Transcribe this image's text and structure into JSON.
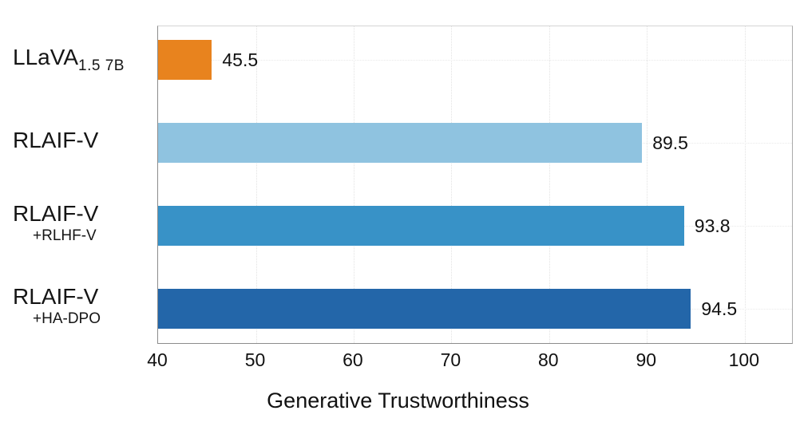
{
  "figure": {
    "background": "#ffffff",
    "text_color": "#111111"
  },
  "chart_data": {
    "type": "bar",
    "orientation": "horizontal",
    "title": "",
    "xlabel": "Generative Trustworthiness",
    "ylabel": "",
    "xlim": [
      40,
      105
    ],
    "xticks": [
      "40",
      "50",
      "60",
      "70",
      "80",
      "90",
      "100"
    ],
    "xtick_values": [
      40,
      50,
      60,
      70,
      80,
      90,
      100
    ],
    "grid": "faint dotted gridlines, vertical at each x tick and horizontal at each bar center",
    "legend": "none",
    "categories": [
      "LLaVA 1.5 7B",
      "RLAIF-V",
      "RLAIF-V +RLHF-V",
      "RLAIF-V +HA-DPO"
    ],
    "values": [
      45.5,
      89.5,
      93.8,
      94.5
    ],
    "value_labels": [
      "45.5",
      "89.5",
      "93.8",
      "94.5"
    ],
    "bar_colors": [
      "#E8831E",
      "#8FC3E0",
      "#3892C7",
      "#2366A9"
    ]
  },
  "rows": [
    {
      "label": "LLaVA",
      "subscript": "1.5 7B",
      "sublabel": "",
      "value_label": "45.5",
      "color": "#E8831E"
    },
    {
      "label": "RLAIF-V",
      "subscript": "",
      "sublabel": "",
      "value_label": "89.5",
      "color": "#8FC3E0"
    },
    {
      "label": "RLAIF-V",
      "subscript": "",
      "sublabel": "+RLHF-V",
      "value_label": "93.8",
      "color": "#3892C7"
    },
    {
      "label": "RLAIF-V",
      "subscript": "",
      "sublabel": "+HA-DPO",
      "value_label": "94.5",
      "color": "#2366A9"
    }
  ]
}
